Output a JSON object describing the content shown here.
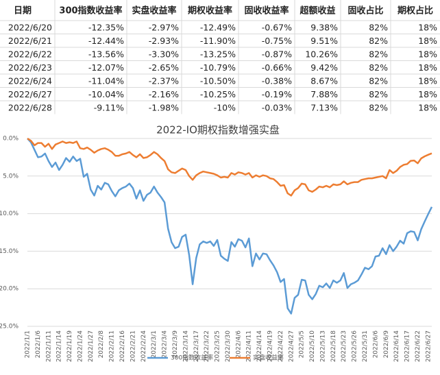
{
  "table": {
    "header": [
      "日期",
      "300指数收益率",
      "实盘收益率",
      "期权收益率",
      "固收收益率",
      "超额收益",
      "固收占比",
      "期权占比"
    ],
    "rows": [
      [
        "2022/6/20",
        "-12.35%",
        "-2.97%",
        "-12.49%",
        "-0.67%",
        "9.38%",
        "82%",
        "18%"
      ],
      [
        "2022/6/21",
        "-12.44%",
        "-2.93%",
        "-11.90%",
        "-0.75%",
        "9.51%",
        "82%",
        "18%"
      ],
      [
        "2022/6/22",
        "-13.56%",
        "-3.30%",
        "-13.25%",
        "-0.87%",
        "10.26%",
        "82%",
        "18%"
      ],
      [
        "2022/6/23",
        "-12.07%",
        "-2.65%",
        "-10.79%",
        "-0.66%",
        "9.42%",
        "82%",
        "18%"
      ],
      [
        "2022/6/24",
        "-11.04%",
        "-2.37%",
        "-10.50%",
        "-0.38%",
        "8.67%",
        "82%",
        "18%"
      ],
      [
        "2022/6/27",
        "-10.04%",
        "-2.16%",
        "-10.25%",
        "-0.19%",
        "7.88%",
        "82%",
        "18%"
      ],
      [
        "2022/6/28",
        "-9.11%",
        "-1.98%",
        "-10%",
        "-0.03%",
        "7.13%",
        "82%",
        "18%"
      ]
    ]
  },
  "chart_data": {
    "type": "line",
    "title": "2022-IO期权指数增强实盘",
    "categories": [
      "2022/1/1",
      null,
      null,
      "2022/1/6",
      null,
      null,
      "2022/1/11",
      null,
      null,
      "2022/1/14",
      null,
      null,
      "2022/1/19",
      null,
      null,
      "2022/1/24",
      null,
      null,
      "2022/1/27",
      null,
      null,
      "2022/2/8",
      null,
      null,
      "2022/2/11",
      null,
      null,
      "2022/2/16",
      null,
      null,
      "2022/2/21",
      null,
      null,
      "2022/2/24",
      null,
      null,
      "2022/3/1",
      null,
      null,
      "2022/3/4",
      null,
      null,
      "2022/3/9",
      null,
      null,
      "2022/3/14",
      null,
      null,
      "2022/3/17",
      null,
      null,
      "2022/3/22",
      null,
      null,
      "2022/3/25",
      null,
      null,
      "2022/3/30",
      null,
      null,
      "2022/4/6",
      null,
      null,
      "2022/4/11",
      null,
      null,
      "2022/4/14",
      null,
      null,
      "2022/4/19",
      null,
      null,
      "2022/4/22",
      null,
      null,
      "2022/4/27",
      null,
      null,
      "2022/5/5",
      null,
      null,
      "2022/5/10",
      null,
      null,
      "2022/5/13",
      null,
      null,
      "2022/5/18",
      null,
      null,
      "2022/5/23",
      null,
      null,
      "2022/5/26",
      null,
      null,
      "2022/5/31",
      null,
      null,
      "2022/6/6",
      null,
      null,
      "2022/6/9",
      null,
      null,
      "2022/6/14",
      null,
      null,
      "2022/6/17",
      null,
      null,
      "2022/6/22",
      null,
      null,
      "2022/6/27",
      null
    ],
    "series": [
      {
        "name": "300指数收益率",
        "color": "#5b9bd5",
        "values": [
          0,
          -0.5,
          -1.5,
          -2.5,
          -2.4,
          -2,
          -3,
          -3.8,
          -3.2,
          -4.2,
          -3.5,
          -2.6,
          -3.1,
          -2.4,
          -3.0,
          -2.7,
          -5.1,
          -4.7,
          -6.8,
          -7.6,
          -6.3,
          -6.8,
          -5.9,
          -6.1,
          -7.0,
          -7.7,
          -6.9,
          -6.6,
          -6.4,
          -6.0,
          -6.6,
          -8.0,
          -6.9,
          -8.3,
          -7.5,
          -7.2,
          -6.4,
          -7.2,
          -7.8,
          -8.5,
          -12.0,
          -13.8,
          -14.6,
          -14.4,
          -13.1,
          -12.8,
          -15.5,
          -19.4,
          -15.9,
          -14.1,
          -13.7,
          -13.9,
          -13.7,
          -14.3,
          -13.5,
          -15.6,
          -16.0,
          -16.3,
          -13.8,
          -14.4,
          -13.4,
          -13.6,
          -14.5,
          -13.3,
          -17.0,
          -15.3,
          -16.1,
          -15.3,
          -15.4,
          -16.2,
          -16.9,
          -17.8,
          -19.1,
          -18.7,
          -22.6,
          -23.3,
          -21.2,
          -20.8,
          -18.8,
          -18.9,
          -20.8,
          -21.4,
          -20.7,
          -19.6,
          -19.8,
          -19.3,
          -19.9,
          -18.9,
          -19.2,
          -18.9,
          -17.9,
          -19.9,
          -19.4,
          -19.2,
          -18.9,
          -18.1,
          -17.2,
          -17.4,
          -17.0,
          -15.7,
          -15.6,
          -14.6,
          -15.4,
          -14.2,
          -15.0,
          -14.4,
          -13.6,
          -14.0,
          -12.6,
          -12.35,
          -12.44,
          -13.56,
          -12.07,
          -11.04,
          -10.04,
          -9.11
        ]
      },
      {
        "name": "实盘收益率",
        "color": "#ed7d31",
        "values": [
          0,
          -0.3,
          -0.9,
          -0.6,
          -0.6,
          -1.1,
          -0.7,
          -1.4,
          -0.8,
          -0.6,
          -0.4,
          -0.6,
          -0.5,
          -0.6,
          -0.4,
          -1.3,
          -1.4,
          -1.2,
          -1.5,
          -1.9,
          -1.6,
          -1.4,
          -1.3,
          -1.5,
          -1.8,
          -2.3,
          -2.3,
          -2.1,
          -2.0,
          -1.8,
          -2.2,
          -2.5,
          -2.1,
          -2.6,
          -2.5,
          -2.2,
          -1.8,
          -2.1,
          -2.6,
          -3.0,
          -4.1,
          -4.5,
          -4.6,
          -4.3,
          -4.0,
          -4.2,
          -5.0,
          -5.5,
          -4.9,
          -4.6,
          -4.4,
          -4.5,
          -4.6,
          -4.7,
          -4.9,
          -5.2,
          -5.1,
          -5.2,
          -4.6,
          -4.8,
          -4.5,
          -4.6,
          -4.8,
          -4.6,
          -5.2,
          -4.9,
          -5.1,
          -4.9,
          -5.0,
          -5.3,
          -5.4,
          -5.8,
          -6.3,
          -6.2,
          -7.3,
          -7.6,
          -6.9,
          -6.6,
          -6.0,
          -6.1,
          -6.9,
          -7.1,
          -6.8,
          -6.4,
          -6.5,
          -6.3,
          -6.5,
          -6.1,
          -6.2,
          -6.1,
          -5.7,
          -6.1,
          -5.9,
          -5.8,
          -5.8,
          -5.5,
          -5.4,
          -5.3,
          -5.3,
          -5.2,
          -5.1,
          -5.0,
          -5.3,
          -4.2,
          -4.6,
          -4.3,
          -3.8,
          -3.5,
          -3.4,
          -2.97,
          -2.93,
          -3.3,
          -2.65,
          -2.37,
          -2.16,
          -1.98
        ]
      }
    ],
    "ylim": [
      -25,
      0
    ],
    "yticks": [
      {
        "value": 0,
        "label": "0.0%"
      },
      {
        "value": -5,
        "label": "5.0%"
      },
      {
        "value": -10,
        "label": "10.0%"
      },
      {
        "value": -15,
        "label": "15.0%"
      },
      {
        "value": -20,
        "label": "20.0%"
      },
      {
        "value": -25,
        "label": "25.0%"
      }
    ],
    "grid": true,
    "legend": "bottom"
  }
}
